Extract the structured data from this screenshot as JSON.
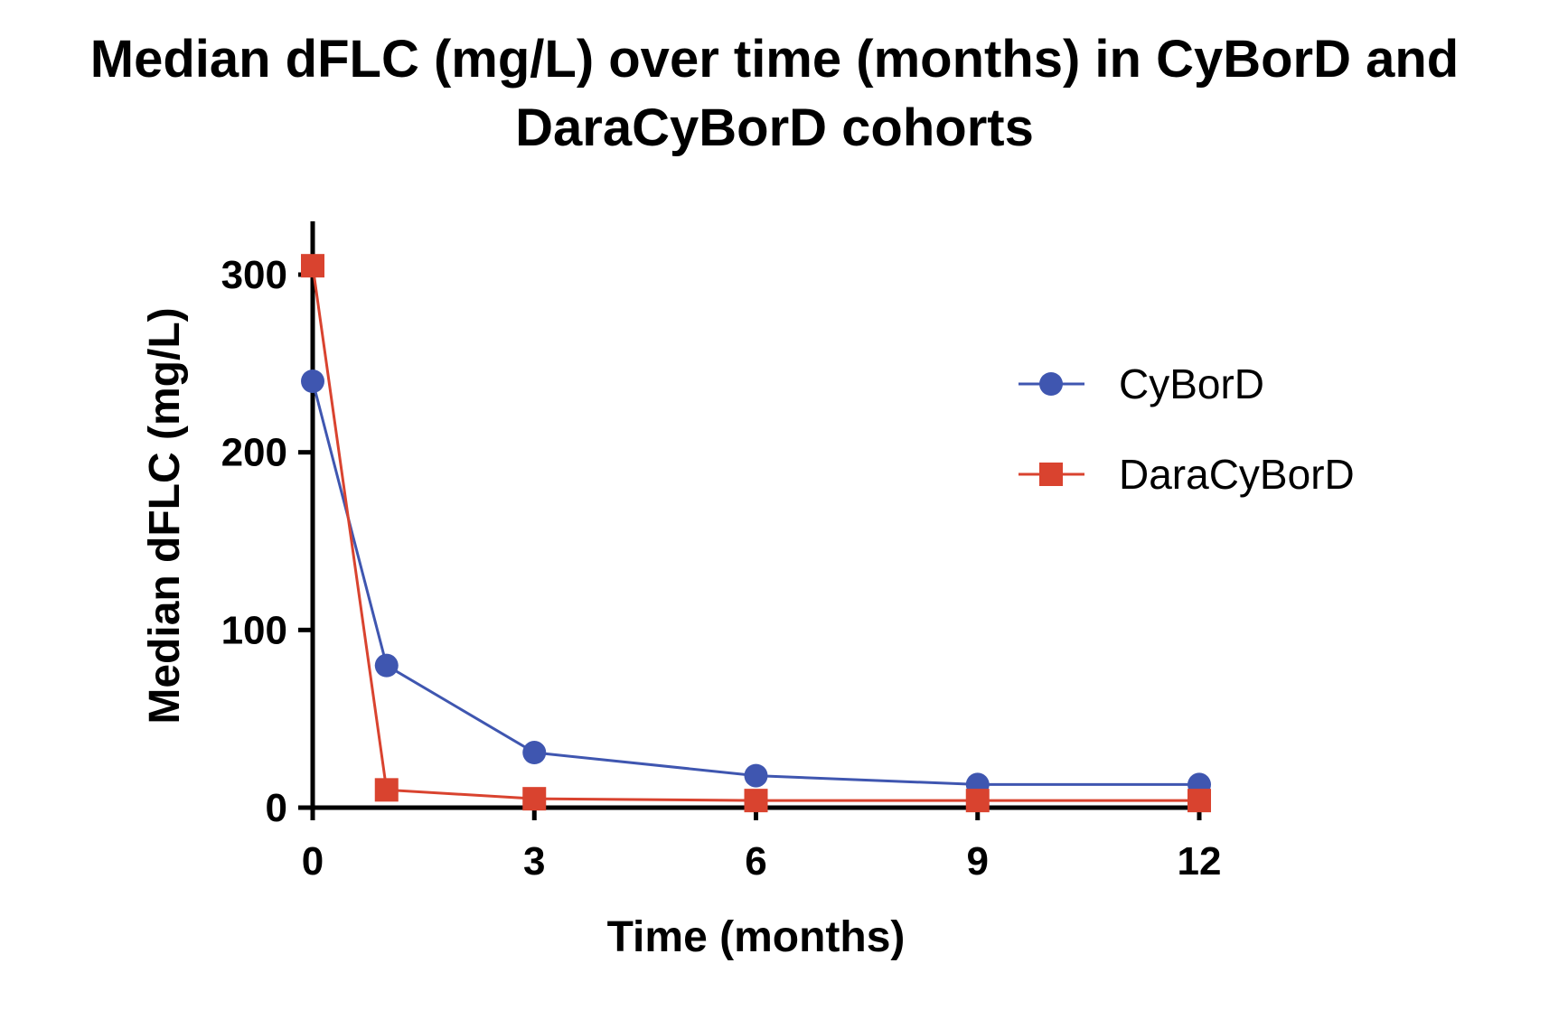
{
  "chart_data": {
    "type": "line",
    "title_lines": [
      "Median dFLC (mg/L) over time (months) in CyBorD and",
      "DaraCyBorD cohorts"
    ],
    "xlabel": "Time (months)",
    "ylabel": "Median dFLC (mg/L)",
    "x": [
      0,
      1,
      3,
      6,
      9,
      12
    ],
    "xticks": [
      0,
      3,
      6,
      9,
      12
    ],
    "yticks": [
      0,
      100,
      200,
      300
    ],
    "xlim": [
      0,
      12
    ],
    "ylim": [
      0,
      330
    ],
    "grid": false,
    "legend_position": "right",
    "series": [
      {
        "name": "CyBorD",
        "marker": "circle",
        "color": "#3f56b0",
        "values": [
          240,
          80,
          31,
          18,
          13,
          13
        ]
      },
      {
        "name": "DaraCyBorD",
        "marker": "square",
        "color": "#d9432f",
        "values": [
          305,
          10,
          5,
          4,
          4,
          4
        ]
      }
    ]
  }
}
